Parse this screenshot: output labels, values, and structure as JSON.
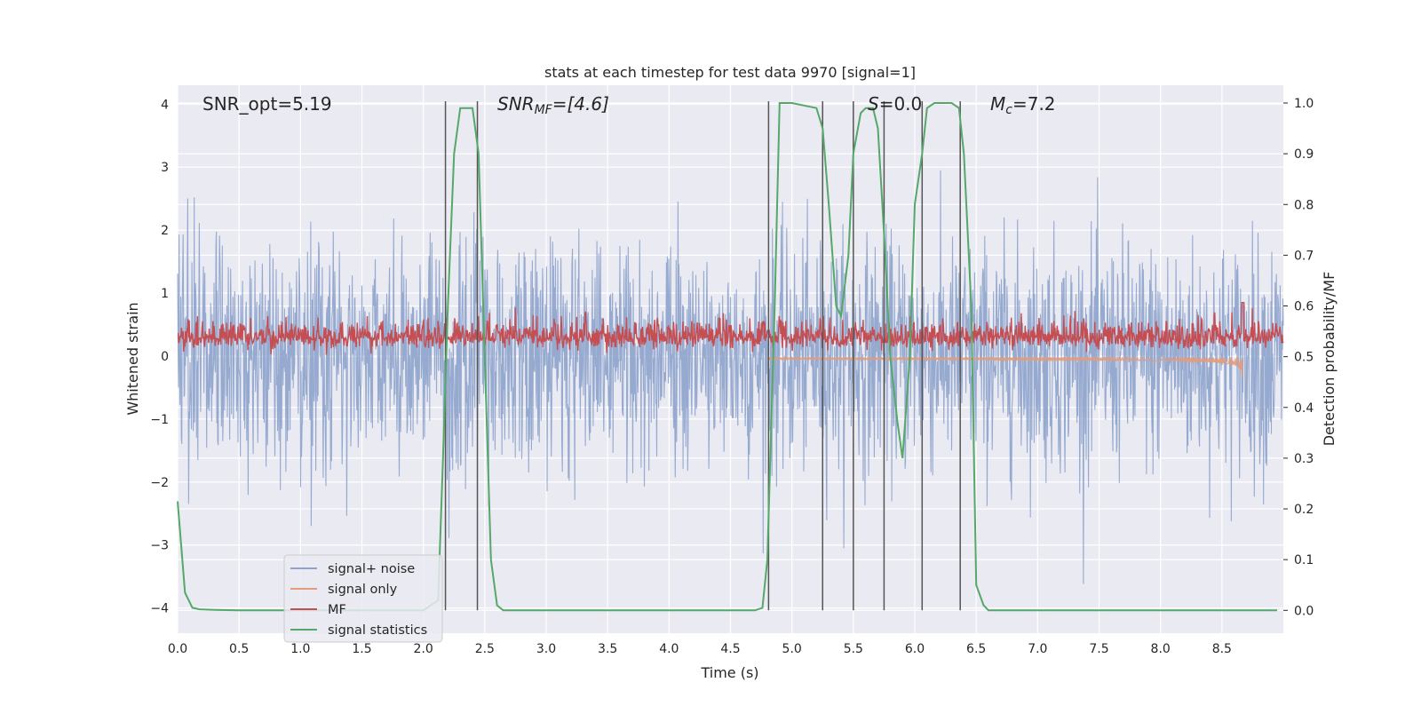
{
  "chart_data": {
    "type": "line",
    "title": "stats at each timestep for test data 9970 [signal=1]",
    "xlabel": "Time (s)",
    "ylabel": "Whitened strain",
    "y2label": "Detection probability/MF",
    "xlim": [
      0,
      9.0
    ],
    "ylim": [
      -4.4,
      4.3
    ],
    "y2lim": [
      -0.045,
      1.035
    ],
    "xticks": [
      "0.0",
      "0.5",
      "1.0",
      "1.5",
      "2.0",
      "2.5",
      "3.0",
      "3.5",
      "4.0",
      "4.5",
      "5.0",
      "5.5",
      "6.0",
      "6.5",
      "7.0",
      "7.5",
      "8.0",
      "8.5"
    ],
    "yticks": [
      "−4",
      "−3",
      "−2",
      "−1",
      "0",
      "1",
      "2",
      "3",
      "4"
    ],
    "y2ticks": [
      "0.0",
      "0.1",
      "0.2",
      "0.3",
      "0.4",
      "0.5",
      "0.6",
      "0.7",
      "0.8",
      "0.9",
      "1.0"
    ],
    "grid": true,
    "legend_position": "lower-left",
    "annotations": {
      "snr_opt": "SNR_opt=5.19",
      "snr_mf_main": "SNR",
      "snr_mf_sub": "MF",
      "snr_mf_tail": "=[4.6]",
      "s_main": "S",
      "s_tail": "=0.0",
      "mc_main": "M",
      "mc_sub": "c",
      "mc_tail": "=7.2"
    },
    "series": [
      {
        "name": "signal+ noise",
        "color": "#8da3cc",
        "description": "noise band",
        "approx_std": 0.9
      },
      {
        "name": "signal only",
        "color": "#e59a78",
        "chirp_end": 8.67,
        "chirp_peak": -0.75
      },
      {
        "name": "MF",
        "color": "#c44e52",
        "approx_mean": 0.3
      },
      {
        "name": "signal statistics",
        "color": "#55a868",
        "x": [
          0,
          0.06,
          0.12,
          0.18,
          0.3,
          0.5,
          1.0,
          2.0,
          2.12,
          2.16,
          2.2,
          2.25,
          2.3,
          2.35,
          2.4,
          2.45,
          2.5,
          2.55,
          2.6,
          2.65,
          3.0,
          4.0,
          4.7,
          4.76,
          4.8,
          4.86,
          4.9,
          5.0,
          5.2,
          5.25,
          5.3,
          5.36,
          5.4,
          5.46,
          5.5,
          5.56,
          5.6,
          5.66,
          5.7,
          5.76,
          5.8,
          5.86,
          5.9,
          5.96,
          6.0,
          6.06,
          6.1,
          6.16,
          6.2,
          6.3,
          6.36,
          6.4,
          6.46,
          6.5,
          6.56,
          6.6,
          7.0,
          8.0,
          8.95
        ],
        "y": [
          0.215,
          0.035,
          0.005,
          0.002,
          0.001,
          0.0,
          0.0,
          0.0,
          0.02,
          0.3,
          0.6,
          0.9,
          0.99,
          0.99,
          0.99,
          0.9,
          0.5,
          0.1,
          0.01,
          0.0,
          0.0,
          0.0,
          0.0,
          0.005,
          0.1,
          0.6,
          1.0,
          1.0,
          0.99,
          0.95,
          0.8,
          0.6,
          0.58,
          0.7,
          0.9,
          0.98,
          0.99,
          0.99,
          0.95,
          0.7,
          0.5,
          0.37,
          0.3,
          0.5,
          0.8,
          0.9,
          0.99,
          1.0,
          1.0,
          1.0,
          0.99,
          0.9,
          0.6,
          0.05,
          0.01,
          0.0,
          0.0,
          0.0,
          0.0
        ]
      }
    ],
    "vertical_lines": [
      2.18,
      2.44,
      4.81,
      5.25,
      5.5,
      5.75,
      6.06,
      6.37
    ],
    "colors": {
      "plot_bg": "#eaeaf2",
      "grid": "#ffffff",
      "vline": "#555555"
    }
  }
}
